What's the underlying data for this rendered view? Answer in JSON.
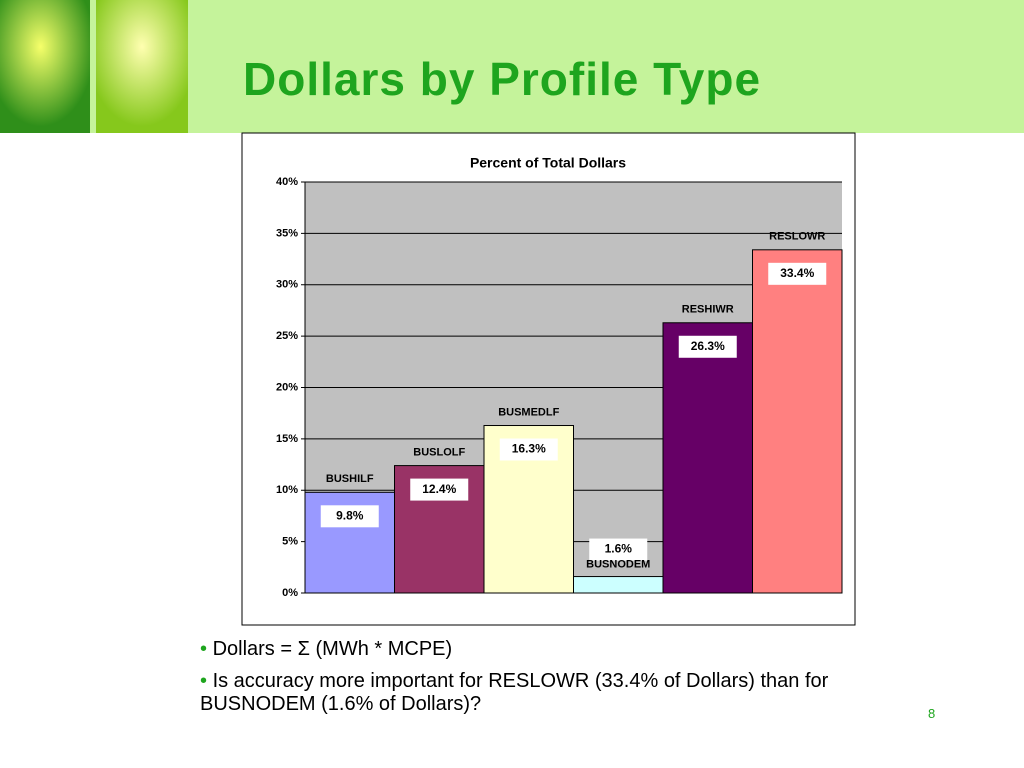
{
  "slide": {
    "title": "Dollars by Profile Type",
    "bullets": [
      "Dollars = Σ (MWh * MCPE)",
      "Is accuracy more important for RESLOWR (33.4% of Dollars) than for BUSNODEM (1.6% of Dollars)?"
    ],
    "page_number": "8"
  },
  "chart_data": {
    "type": "bar",
    "title": "Percent of Total Dollars",
    "categories": [
      "BUSHILF",
      "BUSLOLF",
      "BUSMEDLF",
      "BUSNODEM",
      "RESHIWR",
      "RESLOWR"
    ],
    "values": [
      9.8,
      12.4,
      16.3,
      1.6,
      26.3,
      33.4
    ],
    "value_labels": [
      "9.8%",
      "12.4%",
      "16.3%",
      "1.6%",
      "26.3%",
      "33.4%"
    ],
    "colors": [
      "#9999ff",
      "#993366",
      "#ffffcc",
      "#ccffff",
      "#660066",
      "#ff8080"
    ],
    "ylim": [
      0,
      40
    ],
    "yticks": [
      {
        "value": 0,
        "label": "0%"
      },
      {
        "value": 5,
        "label": "5%"
      },
      {
        "value": 10,
        "label": "10%"
      },
      {
        "value": 15,
        "label": "15%"
      },
      {
        "value": 20,
        "label": "20%"
      },
      {
        "value": 25,
        "label": "25%"
      },
      {
        "value": 30,
        "label": "30%"
      },
      {
        "value": 35,
        "label": "35%"
      },
      {
        "value": 40,
        "label": "40%"
      }
    ],
    "grid": true
  }
}
